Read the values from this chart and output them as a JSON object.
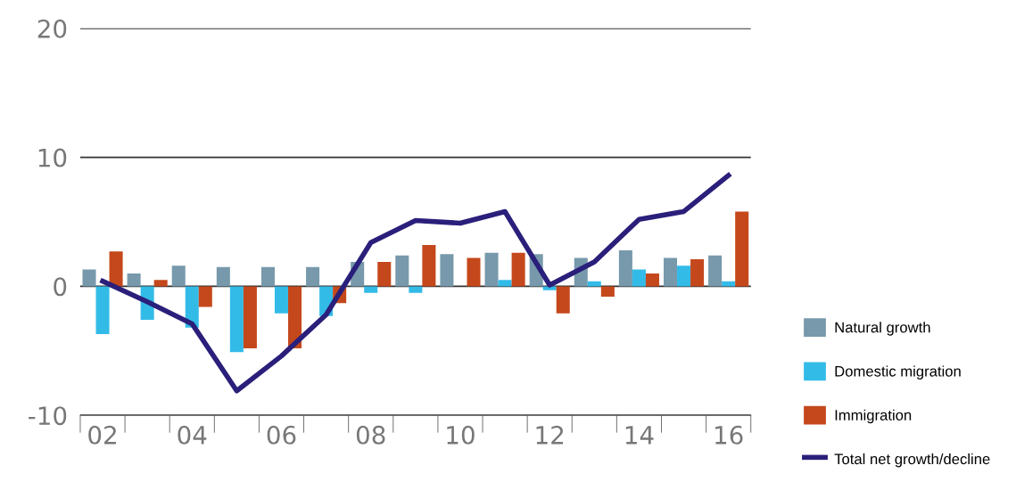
{
  "chart_data": {
    "type": "bar",
    "categories": [
      "02",
      null,
      "04",
      null,
      "06",
      null,
      "08",
      null,
      "10",
      null,
      "12",
      null,
      "14",
      null,
      "16"
    ],
    "series": [
      {
        "name": "Natural growth",
        "color": "#7799ab",
        "values": [
          1.3,
          1.0,
          1.6,
          1.5,
          1.5,
          1.5,
          1.9,
          2.4,
          2.5,
          2.6,
          2.5,
          2.2,
          2.8,
          2.2,
          2.4
        ]
      },
      {
        "name": "Domestic migration",
        "color": "#33bbe8",
        "values": [
          -3.7,
          -2.6,
          -3.2,
          -5.1,
          -2.1,
          -2.3,
          -0.5,
          -0.5,
          0,
          0.5,
          -0.3,
          0.4,
          1.3,
          1.6,
          0.4
        ]
      },
      {
        "name": "Immigration",
        "color": "#c4481c",
        "values": [
          2.7,
          0.5,
          -1.6,
          -4.8,
          -4.8,
          -1.3,
          1.9,
          3.2,
          2.2,
          2.6,
          -2.1,
          -0.8,
          1.0,
          2.1,
          5.8
        ]
      },
      {
        "name": "Total net growth/decline",
        "type": "line",
        "color": "#2a1f7a",
        "values": [
          0.4,
          -1.2,
          -2.9,
          -8.1,
          -5.4,
          -2.2,
          3.4,
          5.1,
          4.9,
          5.8,
          0.1,
          1.9,
          5.2,
          5.8,
          8.6
        ]
      }
    ],
    "ylim": [
      -10,
      20
    ],
    "yticks": [
      -10,
      0,
      10,
      20
    ],
    "grid": "y",
    "legend": "right",
    "marker": "none",
    "line_style": "solid"
  }
}
